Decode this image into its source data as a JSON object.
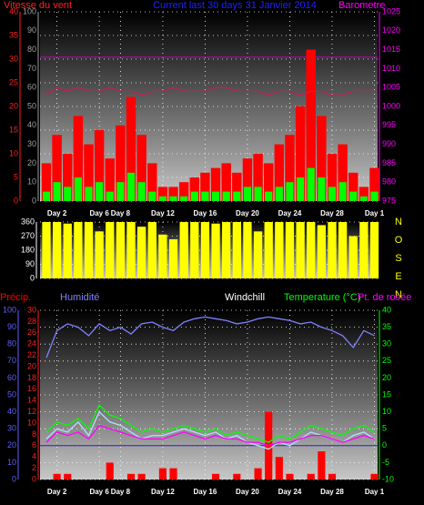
{
  "chart_data": [
    {
      "type": "line",
      "title": "Current last 30 days 31 Janvier 2014",
      "ylabel": "Vitesse du vent",
      "y2label": "Barometre",
      "x": [
        1,
        2,
        3,
        4,
        5,
        6,
        7,
        8,
        9,
        10,
        11,
        12,
        13,
        14,
        15,
        16,
        17,
        18,
        19,
        20,
        21,
        22,
        23,
        24,
        25,
        26,
        27,
        28,
        29,
        30,
        31,
        32
      ],
      "xlim": [
        0.4,
        32.3
      ],
      "xticks": [
        {
          "value": 2,
          "label": "Day 2"
        },
        {
          "value": 6,
          "label": "Day 6"
        },
        {
          "value": 8,
          "label": "Day 8"
        },
        {
          "value": 12,
          "label": "Day 12"
        },
        {
          "value": 16,
          "label": "Day 16"
        },
        {
          "value": 20,
          "label": "Day 20"
        },
        {
          "value": 24,
          "label": "Day 24"
        },
        {
          "value": 28,
          "label": "Day 28"
        },
        {
          "value": 32,
          "label": "Day 1"
        }
      ],
      "ylim": [
        0,
        40
      ],
      "yticks": [
        40,
        35,
        30,
        25,
        20,
        15,
        10,
        5,
        0
      ],
      "y3lim": [
        0,
        100
      ],
      "y3ticks": [
        100,
        90,
        80,
        70,
        60,
        50,
        40,
        30,
        20,
        10,
        0
      ],
      "y2lim": [
        975,
        1025
      ],
      "y2ticks": [
        1025,
        1020,
        1015,
        1010,
        1005,
        1000,
        995,
        990,
        985,
        980,
        975
      ],
      "axis_colors": {
        "y": "#ff2020",
        "y3": "#a0a0a0",
        "y2": "#ff00ff"
      },
      "title_color": "#2020ff",
      "grid": true,
      "ref_lines": [
        {
          "axis": "y2",
          "value": 1013,
          "color": "#c000c0"
        }
      ],
      "series": [
        {
          "color": "#ff0000",
          "style": "bars",
          "axis": "y",
          "values": [
            8,
            14,
            10,
            18,
            12,
            15,
            9,
            16,
            22,
            14,
            8,
            3,
            3,
            4,
            5,
            6,
            7,
            8,
            6,
            9,
            10,
            8,
            12,
            14,
            20,
            32,
            18,
            10,
            12,
            6,
            3,
            7
          ]
        },
        {
          "color": "#00ff00",
          "style": "bars",
          "axis": "y",
          "values": [
            2,
            4,
            3,
            5,
            3,
            4,
            2,
            4,
            6,
            4,
            2,
            1,
            1,
            1,
            2,
            2,
            2,
            2,
            2,
            3,
            3,
            2,
            3,
            4,
            5,
            7,
            5,
            3,
            4,
            2,
            1,
            2
          ]
        },
        {
          "color": "#c02050",
          "style": "line",
          "axis": "y2",
          "values": [
            1003,
            1005,
            1004,
            1005,
            1004,
            1004,
            1005,
            1004,
            1004,
            1003,
            1004,
            1004,
            1005,
            1004,
            1004,
            1004,
            1005,
            1005,
            1004,
            1004,
            1004,
            1003,
            1004,
            1004,
            1003,
            1004,
            1004,
            1003,
            1003,
            1004,
            1004,
            1004
          ]
        }
      ]
    },
    {
      "type": "bar",
      "x": [
        1,
        2,
        3,
        4,
        5,
        6,
        7,
        8,
        9,
        10,
        11,
        12,
        13,
        14,
        15,
        16,
        17,
        18,
        19,
        20,
        21,
        22,
        23,
        24,
        25,
        26,
        27,
        28,
        29,
        30,
        31,
        32
      ],
      "xlim": [
        0.4,
        32.3
      ],
      "xticks": [
        2,
        6,
        8,
        12,
        16,
        20,
        24,
        28,
        32
      ],
      "ylim": [
        0,
        360
      ],
      "yticks": [
        360,
        270,
        180,
        90,
        0
      ],
      "axis_colors": {
        "y": "#ffffff"
      },
      "grid": true,
      "direction_labels": [
        "N",
        "O",
        "S",
        "E",
        "N"
      ],
      "color": "#ffff00",
      "values": [
        360,
        360,
        350,
        360,
        360,
        300,
        360,
        360,
        360,
        330,
        360,
        280,
        250,
        360,
        360,
        360,
        350,
        360,
        360,
        360,
        300,
        360,
        360,
        360,
        360,
        360,
        340,
        360,
        360,
        270,
        360,
        360
      ]
    },
    {
      "type": "line",
      "x": [
        1,
        2,
        3,
        4,
        5,
        6,
        7,
        8,
        9,
        10,
        11,
        12,
        13,
        14,
        15,
        16,
        17,
        18,
        19,
        20,
        21,
        22,
        23,
        24,
        25,
        26,
        27,
        28,
        29,
        30,
        31,
        32
      ],
      "xlim": [
        0.4,
        32.3
      ],
      "xticks": [
        {
          "value": 2,
          "label": "Day 2"
        },
        {
          "value": 6,
          "label": "Day 6"
        },
        {
          "value": 8,
          "label": "Day 8"
        },
        {
          "value": 12,
          "label": "Day 12"
        },
        {
          "value": 16,
          "label": "Day 16"
        },
        {
          "value": 20,
          "label": "Day 20"
        },
        {
          "value": 24,
          "label": "Day 24"
        },
        {
          "value": 28,
          "label": "Day 28"
        },
        {
          "value": 32,
          "label": "Day 1"
        }
      ],
      "ylim": [
        0,
        100
      ],
      "yticks": [
        100,
        90,
        80,
        70,
        60,
        50,
        40,
        30,
        20,
        10,
        0
      ],
      "y3lim": [
        0,
        30
      ],
      "y3ticks": [
        30,
        28,
        26,
        24,
        22,
        20,
        18,
        16,
        14,
        12,
        10,
        8,
        6,
        4,
        2,
        0
      ],
      "y2lim": [
        -10,
        40
      ],
      "y2ticks": [
        40,
        35,
        30,
        25,
        20,
        15,
        10,
        5,
        0,
        -5,
        -10
      ],
      "axis_colors": {
        "y": "#6060ff",
        "y3": "#ff2020",
        "y2": "#00ff00"
      },
      "grid": true,
      "ref_lines": [
        {
          "axis": "y2",
          "value": 0,
          "color": "#2020c0"
        }
      ],
      "series": [
        {
          "name": "Précip.",
          "color": "#ff0000",
          "style": "bars",
          "axis": "y3",
          "values": [
            0,
            1,
            1,
            0,
            0,
            0,
            3,
            0,
            1,
            1,
            0,
            2,
            2,
            0,
            0,
            0,
            1,
            0,
            1,
            0,
            2,
            12,
            4,
            1,
            0,
            1,
            5,
            1,
            0,
            0,
            0,
            1
          ]
        },
        {
          "name": "Humidité",
          "color": "#8080ff",
          "style": "line",
          "axis": "y",
          "values": [
            72,
            88,
            92,
            90,
            85,
            92,
            88,
            90,
            86,
            92,
            93,
            90,
            88,
            93,
            95,
            96,
            95,
            94,
            92,
            93,
            95,
            96,
            95,
            94,
            92,
            93,
            90,
            88,
            85,
            78,
            88,
            85
          ]
        },
        {
          "name": "Windchill",
          "color": "#b0e0ff",
          "style": "line",
          "axis": "y2",
          "values": [
            2,
            5,
            4,
            7,
            3,
            10,
            7,
            6,
            4,
            2,
            3,
            3,
            4,
            5,
            4,
            3,
            4,
            2,
            3,
            1,
            0,
            -1,
            1,
            0,
            2,
            4,
            3,
            2,
            1,
            3,
            4,
            2
          ]
        },
        {
          "name": "Temperature (°C)",
          "color": "#00ff00",
          "style": "line",
          "axis": "y2",
          "values": [
            4,
            7,
            6,
            8,
            5,
            12,
            9,
            8,
            6,
            4,
            5,
            4,
            5,
            6,
            5,
            4,
            5,
            3,
            4,
            3,
            2,
            1,
            3,
            2,
            4,
            6,
            5,
            4,
            3,
            5,
            6,
            4
          ]
        },
        {
          "name": "Pt. de rosée",
          "color": "#ff00ff",
          "style": "line",
          "axis": "y2",
          "values": [
            1,
            4,
            3,
            4,
            2,
            6,
            5,
            4,
            3,
            2,
            2,
            2,
            3,
            4,
            3,
            2,
            3,
            2,
            2,
            1,
            1,
            0,
            1,
            1,
            2,
            3,
            3,
            2,
            1,
            2,
            3,
            2
          ]
        }
      ]
    }
  ]
}
